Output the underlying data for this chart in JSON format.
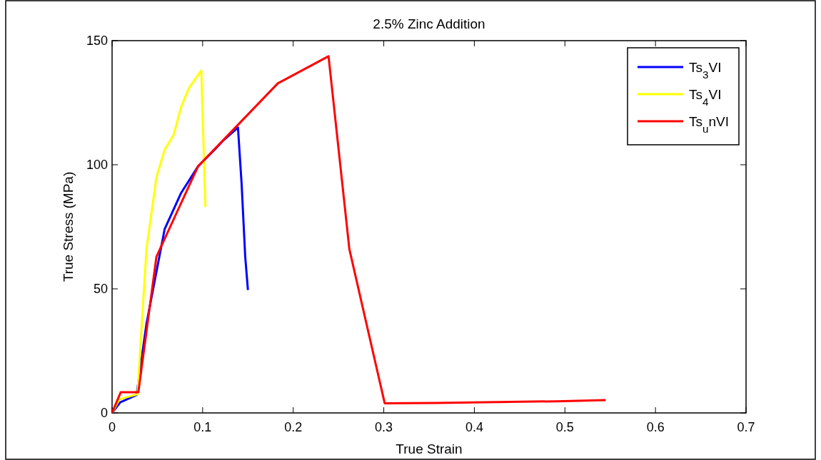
{
  "chart_data": {
    "type": "line",
    "title": "2.5% Zinc Addition",
    "xlabel": "True Strain",
    "ylabel": "True Stress (MPa)",
    "xlim": [
      0,
      0.7
    ],
    "ylim": [
      0,
      150
    ],
    "xticks": [
      0,
      0.1,
      0.2,
      0.3,
      0.4,
      0.5,
      0.6,
      0.7
    ],
    "yticks": [
      0,
      50,
      100,
      150
    ],
    "grid": false,
    "legend": "top right",
    "series": [
      {
        "name": "Ts$_{3}$VI",
        "color": "#0000ff",
        "x": [
          0,
          0.009,
          0.027,
          0.038,
          0.058,
          0.076,
          0.095,
          0.113,
          0.122,
          0.139,
          0.143,
          0.147,
          0.15
        ],
        "values": [
          0,
          4.3,
          7.2,
          36,
          74,
          88.5,
          99.4,
          106,
          109.5,
          115,
          92.5,
          63,
          49.5
        ]
      },
      {
        "name": "Ts$_{4}$VI",
        "color": "#ffff00",
        "x": [
          0,
          0.008,
          0.028,
          0.038,
          0.049,
          0.058,
          0.068,
          0.076,
          0.085,
          0.0985,
          0.103
        ],
        "values": [
          0,
          5.5,
          7.5,
          66,
          95,
          106,
          112,
          123,
          131,
          138,
          83
        ]
      },
      {
        "name": "Ts$_{u}$nVI",
        "color": "#ff0000",
        "x": [
          0,
          0.0095,
          0.029,
          0.049,
          0.095,
          0.183,
          0.239,
          0.262,
          0.301,
          0.36,
          0.49,
          0.545
        ],
        "values": [
          0,
          8.3,
          8.3,
          63,
          99.4,
          132.8,
          143.7,
          66,
          3.9,
          4,
          4.7,
          5.2
        ]
      }
    ]
  }
}
